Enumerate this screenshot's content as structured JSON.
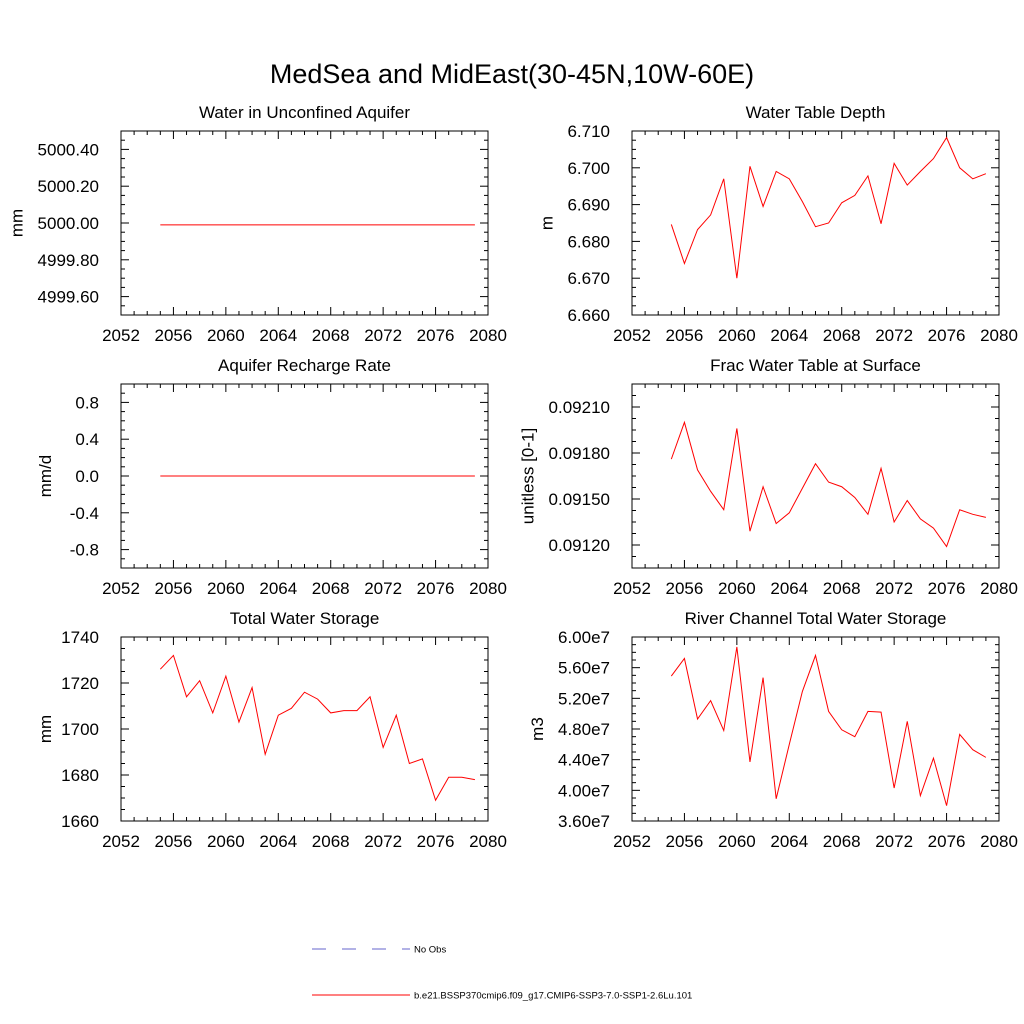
{
  "title": "MedSea and MidEast(30-45N,10W-60E)",
  "colors": {
    "model": "#ff0000",
    "obs": "#6666cc",
    "axis": "#000000"
  },
  "legend": {
    "obs_label": "No Obs",
    "model_label": "b.e21.BSSP370cmip6.f09_g17.CMIP6-SSP3-7.0-SSP1-2.6Lu.101"
  },
  "chart_data": [
    {
      "type": "line",
      "title": "Water in Unconfined Aquifer",
      "ylabel": "mm",
      "xlim": [
        2052,
        2080
      ],
      "ylim": [
        4999.5,
        5000.5
      ],
      "xticks": [
        2052,
        2056,
        2060,
        2064,
        2068,
        2072,
        2076,
        2080
      ],
      "xtick_labels": [
        "2052",
        "2056",
        "2060",
        "2064",
        "2068",
        "2072",
        "2076",
        "2080"
      ],
      "yticks": [
        4999.6,
        4999.8,
        5000.0,
        5000.2,
        5000.4
      ],
      "ytick_labels": [
        "4999.60",
        "4999.80",
        "5000.00",
        "5000.20",
        "5000.40"
      ],
      "x": [
        2055,
        2056,
        2057,
        2058,
        2059,
        2060,
        2061,
        2062,
        2063,
        2064,
        2065,
        2066,
        2067,
        2068,
        2069,
        2070,
        2071,
        2072,
        2073,
        2074,
        2075,
        2076,
        2077,
        2078,
        2079
      ],
      "series": [
        {
          "values": [
            4999.99,
            4999.99,
            4999.99,
            4999.99,
            4999.99,
            4999.99,
            4999.99,
            4999.99,
            4999.99,
            4999.99,
            4999.99,
            4999.99,
            4999.99,
            4999.99,
            4999.99,
            4999.99,
            4999.99,
            4999.99,
            4999.99,
            4999.99,
            4999.99,
            4999.99,
            4999.99,
            4999.99,
            4999.99
          ]
        }
      ]
    },
    {
      "type": "line",
      "title": "Water Table Depth",
      "ylabel": "m",
      "xlim": [
        2052,
        2080
      ],
      "ylim": [
        6.66,
        6.71
      ],
      "xticks": [
        2052,
        2056,
        2060,
        2064,
        2068,
        2072,
        2076,
        2080
      ],
      "xtick_labels": [
        "2052",
        "2056",
        "2060",
        "2064",
        "2068",
        "2072",
        "2076",
        "2080"
      ],
      "yticks": [
        6.66,
        6.67,
        6.68,
        6.69,
        6.7,
        6.71
      ],
      "ytick_labels": [
        "6.660",
        "6.670",
        "6.680",
        "6.690",
        "6.700",
        "6.710"
      ],
      "x": [
        2055,
        2056,
        2057,
        2058,
        2059,
        2060,
        2061,
        2062,
        2063,
        2064,
        2065,
        2066,
        2067,
        2068,
        2069,
        2070,
        2071,
        2072,
        2073,
        2074,
        2075,
        2076,
        2077,
        2078,
        2079
      ],
      "series": [
        {
          "values": [
            6.6846,
            6.674,
            6.6832,
            6.6872,
            6.697,
            6.67,
            6.7004,
            6.6895,
            6.699,
            6.697,
            6.6908,
            6.684,
            6.685,
            6.6905,
            6.6925,
            6.6978,
            6.6848,
            6.7012,
            6.6953,
            6.699,
            6.7025,
            6.7082,
            6.7,
            6.697,
            6.6984
          ]
        }
      ]
    },
    {
      "type": "line",
      "title": "Aquifer Recharge Rate",
      "ylabel": "mm/d",
      "xlim": [
        2052,
        2080
      ],
      "ylim": [
        -1.0,
        1.0
      ],
      "xticks": [
        2052,
        2056,
        2060,
        2064,
        2068,
        2072,
        2076,
        2080
      ],
      "xtick_labels": [
        "2052",
        "2056",
        "2060",
        "2064",
        "2068",
        "2072",
        "2076",
        "2080"
      ],
      "yticks": [
        -0.8,
        -0.4,
        0.0,
        0.4,
        0.8
      ],
      "ytick_labels": [
        "-0.8",
        "-0.4",
        "0.0",
        "0.4",
        "0.8"
      ],
      "x": [
        2055,
        2056,
        2057,
        2058,
        2059,
        2060,
        2061,
        2062,
        2063,
        2064,
        2065,
        2066,
        2067,
        2068,
        2069,
        2070,
        2071,
        2072,
        2073,
        2074,
        2075,
        2076,
        2077,
        2078,
        2079
      ],
      "series": [
        {
          "values": [
            0,
            0,
            0,
            0,
            0,
            0,
            0,
            0,
            0,
            0,
            0,
            0,
            0,
            0,
            0,
            0,
            0,
            0,
            0,
            0,
            0,
            0,
            0,
            0,
            0
          ]
        }
      ]
    },
    {
      "type": "line",
      "title": "Frac Water Table at Surface",
      "ylabel": "unitless [0-1]",
      "xlim": [
        2052,
        2080
      ],
      "ylim": [
        0.09105,
        0.09225
      ],
      "xticks": [
        2052,
        2056,
        2060,
        2064,
        2068,
        2072,
        2076,
        2080
      ],
      "xtick_labels": [
        "2052",
        "2056",
        "2060",
        "2064",
        "2068",
        "2072",
        "2076",
        "2080"
      ],
      "yticks": [
        0.0912,
        0.0915,
        0.0918,
        0.0921
      ],
      "ytick_labels": [
        "0.09120",
        "0.09150",
        "0.09180",
        "0.09210"
      ],
      "x": [
        2055,
        2056,
        2057,
        2058,
        2059,
        2060,
        2061,
        2062,
        2063,
        2064,
        2065,
        2066,
        2067,
        2068,
        2069,
        2070,
        2071,
        2072,
        2073,
        2074,
        2075,
        2076,
        2077,
        2078,
        2079
      ],
      "series": [
        {
          "values": [
            0.09176,
            0.092,
            0.09169,
            0.09155,
            0.09143,
            0.09196,
            0.09129,
            0.09158,
            0.09134,
            0.09141,
            0.09157,
            0.09173,
            0.09161,
            0.09158,
            0.09151,
            0.0914,
            0.0917,
            0.09135,
            0.09149,
            0.09137,
            0.09131,
            0.09119,
            0.09143,
            0.0914,
            0.09138
          ]
        }
      ]
    },
    {
      "type": "line",
      "title": "Total Water Storage",
      "ylabel": "mm",
      "xlim": [
        2052,
        2080
      ],
      "ylim": [
        1660,
        1740
      ],
      "xticks": [
        2052,
        2056,
        2060,
        2064,
        2068,
        2072,
        2076,
        2080
      ],
      "xtick_labels": [
        "2052",
        "2056",
        "2060",
        "2064",
        "2068",
        "2072",
        "2076",
        "2080"
      ],
      "yticks": [
        1660,
        1680,
        1700,
        1720,
        1740
      ],
      "ytick_labels": [
        "1660",
        "1680",
        "1700",
        "1720",
        "1740"
      ],
      "x": [
        2055,
        2056,
        2057,
        2058,
        2059,
        2060,
        2061,
        2062,
        2063,
        2064,
        2065,
        2066,
        2067,
        2068,
        2069,
        2070,
        2071,
        2072,
        2073,
        2074,
        2075,
        2076,
        2077,
        2078,
        2079
      ],
      "series": [
        {
          "values": [
            1726,
            1732,
            1714,
            1721,
            1707,
            1723,
            1703,
            1718,
            1689,
            1706,
            1709,
            1716,
            1713,
            1707,
            1708,
            1708,
            1714,
            1692,
            1706,
            1685,
            1687,
            1669,
            1679,
            1679,
            1678
          ]
        }
      ]
    },
    {
      "type": "line",
      "title": "River Channel Total Water Storage",
      "ylabel": "m3",
      "xlim": [
        2052,
        2080
      ],
      "ylim": [
        36000000,
        60000000
      ],
      "xticks": [
        2052,
        2056,
        2060,
        2064,
        2068,
        2072,
        2076,
        2080
      ],
      "xtick_labels": [
        "2052",
        "2056",
        "2060",
        "2064",
        "2068",
        "2072",
        "2076",
        "2080"
      ],
      "yticks": [
        36000000,
        40000000,
        44000000,
        48000000,
        52000000,
        56000000,
        60000000
      ],
      "ytick_labels": [
        "3.60e7",
        "4.00e7",
        "4.40e7",
        "4.80e7",
        "5.20e7",
        "5.60e7",
        "6.00e7"
      ],
      "x": [
        2055,
        2056,
        2057,
        2058,
        2059,
        2060,
        2061,
        2062,
        2063,
        2064,
        2065,
        2066,
        2067,
        2068,
        2069,
        2070,
        2071,
        2072,
        2073,
        2074,
        2075,
        2076,
        2077,
        2078,
        2079
      ],
      "series": [
        {
          "values": [
            54900000,
            57200000,
            49300000,
            51700000,
            47800000,
            58700000,
            43700000,
            54700000,
            38900000,
            46000000,
            52900000,
            57600000,
            50300000,
            47900000,
            47000000,
            50300000,
            50200000,
            40300000,
            49000000,
            39300000,
            44200000,
            38000000,
            47300000,
            45300000,
            44300000
          ]
        }
      ]
    }
  ]
}
